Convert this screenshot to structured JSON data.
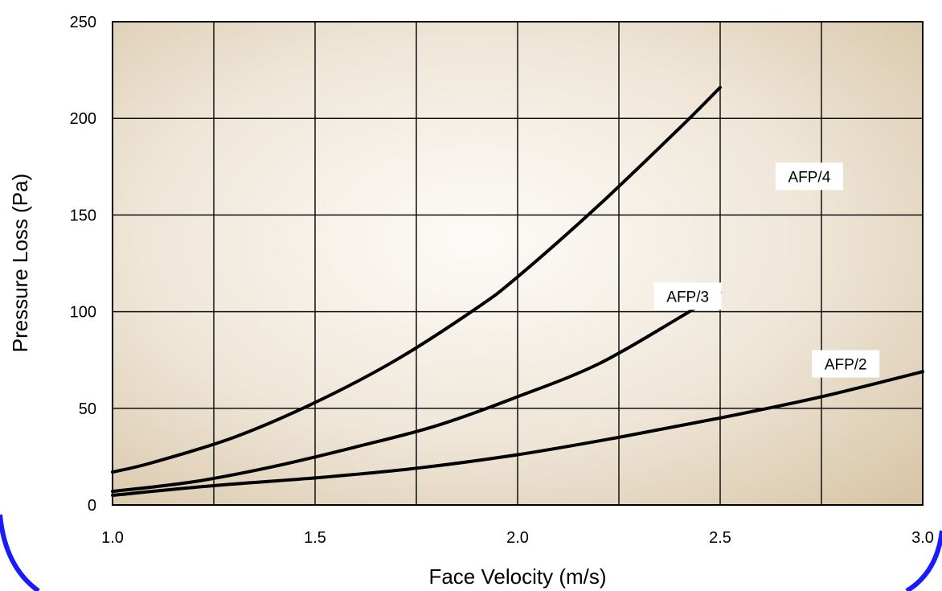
{
  "chart_data": {
    "type": "line",
    "title": "",
    "xlabel": "Face Velocity (m/s)",
    "ylabel": "Pressure Loss (Pa)",
    "xlim": [
      1.0,
      3.0
    ],
    "ylim": [
      0,
      250
    ],
    "x_ticks": [
      "1.0",
      "1.5",
      "2.0",
      "2.5",
      "3.0"
    ],
    "y_ticks": [
      "0",
      "50",
      "100",
      "150",
      "200",
      "250"
    ],
    "grid": true,
    "series": [
      {
        "name": "AFP/4",
        "x": [
          1.0,
          1.1,
          1.3,
          1.5,
          1.7,
          1.9,
          2.0,
          2.2,
          2.4,
          2.5
        ],
        "y": [
          17,
          22,
          35,
          53,
          75,
          102,
          118,
          155,
          195,
          216
        ]
      },
      {
        "name": "AFP/3",
        "x": [
          1.0,
          1.2,
          1.4,
          1.6,
          1.8,
          2.0,
          2.2,
          2.4,
          2.5
        ],
        "y": [
          7,
          12,
          20,
          30,
          41,
          56,
          73,
          97,
          110
        ]
      },
      {
        "name": "AFP/2",
        "x": [
          1.0,
          1.25,
          1.5,
          1.75,
          2.0,
          2.25,
          2.5,
          2.75,
          3.0
        ],
        "y": [
          5,
          10,
          14,
          19,
          26,
          35,
          45,
          56,
          69
        ]
      }
    ],
    "labels": [
      "AFP/4",
      "AFP/3",
      "AFP/2"
    ],
    "colors": {
      "line": "#000000",
      "grid": "#111111",
      "background_center": "#fdfbf8",
      "background_edge": "#d8c6a8",
      "frame_accent": "#1a1aff"
    }
  }
}
